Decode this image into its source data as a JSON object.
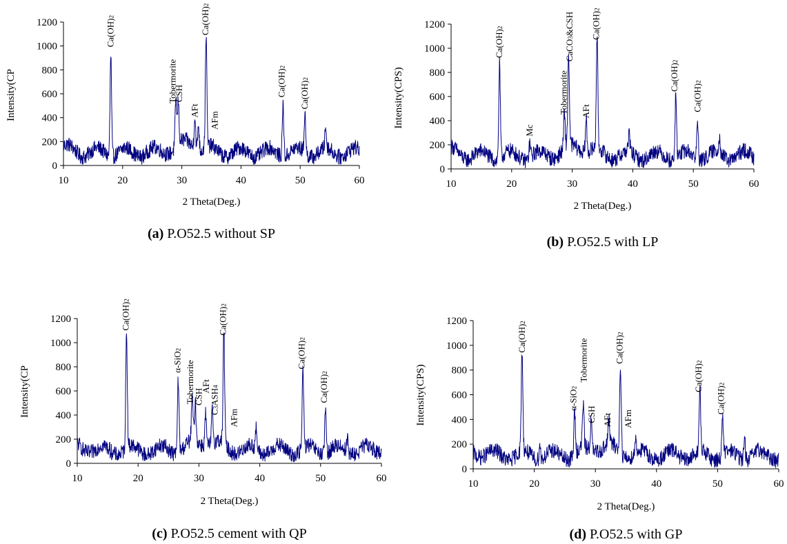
{
  "figure": {
    "panels": [
      {
        "caption_tag": "(a)",
        "caption_text": " P.O52.5 without SP",
        "xlabel": "2 Theta(Deg.)",
        "ylabel": "Intensity(CP",
        "xticks": [
          "10",
          "20",
          "30",
          "40",
          "50",
          "60"
        ],
        "yticks": [
          "0",
          "200",
          "400",
          "600",
          "800",
          "1000",
          "1200"
        ]
      },
      {
        "caption_tag": "(b)",
        "caption_text": " P.O52.5  with LP",
        "xlabel": "2 Theta(Deg.)",
        "ylabel": "Intensity(CPS)",
        "xticks": [
          "10",
          "20",
          "30",
          "40",
          "50",
          "60"
        ],
        "yticks": [
          "0",
          "200",
          "400",
          "600",
          "800",
          "1000",
          "1200"
        ]
      },
      {
        "caption_tag": "(c)",
        "caption_text": " P.O52.5 cement with QP",
        "xlabel": "2 Theta(Deg.)",
        "ylabel": "Intensity(CP",
        "xticks": [
          "10",
          "20",
          "30",
          "40",
          "50",
          "60"
        ],
        "yticks": [
          "0",
          "200",
          "400",
          "600",
          "800",
          "1000",
          "1200"
        ]
      },
      {
        "caption_tag": "(d)",
        "caption_text": " P.O52.5 with GP",
        "xlabel": "2 Theta(Deg.)",
        "ylabel": "Intensity(CPS)",
        "xticks": [
          "10",
          "20",
          "30",
          "40",
          "50",
          "60"
        ],
        "yticks": [
          "0",
          "200",
          "400",
          "600",
          "800",
          "1000",
          "1200"
        ]
      }
    ]
  },
  "chart_data": [
    {
      "type": "line",
      "xlim": [
        10,
        60
      ],
      "ylim": [
        0,
        1200
      ],
      "xlabel": "2 Theta(Deg.)",
      "ylabel": "Intensity(CP",
      "line_color": "#000080",
      "baseline": 110,
      "peaks": [
        {
          "x": 18.0,
          "y": 960
        },
        {
          "x": 29.0,
          "y": 510
        },
        {
          "x": 29.4,
          "y": 470
        },
        {
          "x": 32.2,
          "y": 390
        },
        {
          "x": 32.8,
          "y": 330
        },
        {
          "x": 34.1,
          "y": 1060
        },
        {
          "x": 47.1,
          "y": 550
        },
        {
          "x": 50.8,
          "y": 450
        },
        {
          "x": 54.3,
          "y": 280
        }
      ],
      "annotations": [
        {
          "label": "Ca(OH)2",
          "x": 18.0,
          "y": 990
        },
        {
          "label": "Tobermorite",
          "x": 28.5,
          "y": 520
        },
        {
          "label": "CSH",
          "x": 29.6,
          "y": 530
        },
        {
          "label": "AFt",
          "x": 32.2,
          "y": 400
        },
        {
          "label": "Ca(OH)2",
          "x": 34.0,
          "y": 1090
        },
        {
          "label": "AFm",
          "x": 35.6,
          "y": 300
        },
        {
          "label": "Ca(OH)2",
          "x": 46.9,
          "y": 570
        },
        {
          "label": "Ca(OH)2",
          "x": 50.8,
          "y": 470
        }
      ]
    },
    {
      "type": "line",
      "xlim": [
        10,
        60
      ],
      "ylim": [
        0,
        1200
      ],
      "xlabel": "2 Theta(Deg.)",
      "ylabel": "Intensity(CPS)",
      "line_color": "#000080",
      "baseline": 110,
      "peaks": [
        {
          "x": 18.0,
          "y": 890
        },
        {
          "x": 23.0,
          "y": 230
        },
        {
          "x": 28.7,
          "y": 390
        },
        {
          "x": 29.4,
          "y": 870
        },
        {
          "x": 32.3,
          "y": 380
        },
        {
          "x": 34.1,
          "y": 1050
        },
        {
          "x": 39.4,
          "y": 260
        },
        {
          "x": 47.1,
          "y": 620
        },
        {
          "x": 50.7,
          "y": 420
        },
        {
          "x": 54.3,
          "y": 250
        }
      ],
      "annotations": [
        {
          "label": "Ca(OH)2",
          "x": 18.0,
          "y": 920
        },
        {
          "label": "Mc",
          "x": 23.0,
          "y": 270
        },
        {
          "label": "Tobermorite",
          "x": 28.6,
          "y": 450
        },
        {
          "label": "CaCO3&CSH",
          "x": 29.6,
          "y": 890
        },
        {
          "label": "AFt",
          "x": 32.3,
          "y": 420
        },
        {
          "label": "Ca(OH)2",
          "x": 34.0,
          "y": 1070
        },
        {
          "label": "Ca(OH)2",
          "x": 46.9,
          "y": 640
        },
        {
          "label": "Ca(OH)2",
          "x": 50.7,
          "y": 470
        }
      ]
    },
    {
      "type": "line",
      "xlim": [
        10,
        60
      ],
      "ylim": [
        0,
        1200
      ],
      "xlabel": "2 Theta(Deg.)",
      "ylabel": "Intensity(CP",
      "line_color": "#000080",
      "baseline": 110,
      "peaks": [
        {
          "x": 18.1,
          "y": 1080
        },
        {
          "x": 26.6,
          "y": 730
        },
        {
          "x": 28.9,
          "y": 480
        },
        {
          "x": 29.4,
          "y": 440
        },
        {
          "x": 31.1,
          "y": 380
        },
        {
          "x": 32.2,
          "y": 390
        },
        {
          "x": 34.1,
          "y": 1040
        },
        {
          "x": 39.4,
          "y": 280
        },
        {
          "x": 47.1,
          "y": 760
        },
        {
          "x": 50.8,
          "y": 480
        },
        {
          "x": 54.4,
          "y": 230
        }
      ],
      "annotations": [
        {
          "label": "Ca(OH)2",
          "x": 18.0,
          "y": 1100
        },
        {
          "label": "α-SiO2",
          "x": 26.5,
          "y": 750
        },
        {
          "label": "Tobermorite",
          "x": 28.6,
          "y": 490
        },
        {
          "label": "CSH",
          "x": 30.0,
          "y": 480
        },
        {
          "label": "AFt",
          "x": 31.2,
          "y": 580
        },
        {
          "label": "C3ASH4",
          "x": 32.6,
          "y": 400
        },
        {
          "label": "Ca(OH)2",
          "x": 34.0,
          "y": 1060
        },
        {
          "label": "AFm",
          "x": 35.8,
          "y": 300
        },
        {
          "label": "Ca(OH)2",
          "x": 46.9,
          "y": 780
        },
        {
          "label": "Ca(OH)2",
          "x": 50.6,
          "y": 500
        }
      ]
    },
    {
      "type": "line",
      "xlim": [
        10,
        60
      ],
      "ylim": [
        0,
        1200
      ],
      "xlabel": "2 Theta(Deg.)",
      "ylabel": "Intensity(CPS)",
      "line_color": "#000080",
      "baseline": 110,
      "peaks": [
        {
          "x": 18.0,
          "y": 920
        },
        {
          "x": 20.9,
          "y": 230
        },
        {
          "x": 26.6,
          "y": 450
        },
        {
          "x": 28.0,
          "y": 470
        },
        {
          "x": 29.3,
          "y": 350
        },
        {
          "x": 32.2,
          "y": 330
        },
        {
          "x": 34.1,
          "y": 830
        },
        {
          "x": 36.6,
          "y": 230
        },
        {
          "x": 47.1,
          "y": 600
        },
        {
          "x": 50.8,
          "y": 420
        },
        {
          "x": 54.4,
          "y": 280
        }
      ],
      "annotations": [
        {
          "label": "Ca(OH)2",
          "x": 18.0,
          "y": 940
        },
        {
          "label": "α-SiO2",
          "x": 26.4,
          "y": 470
        },
        {
          "label": "Tobermorite",
          "x": 28.1,
          "y": 700
        },
        {
          "label": "CSH",
          "x": 29.4,
          "y": 370
        },
        {
          "label": "AFt",
          "x": 32.0,
          "y": 340
        },
        {
          "label": "Ca(OH)2",
          "x": 34.0,
          "y": 850
        },
        {
          "label": "AFm",
          "x": 35.4,
          "y": 330
        },
        {
          "label": "Ca(OH)2",
          "x": 46.9,
          "y": 620
        },
        {
          "label": "Ca(OH)2",
          "x": 50.6,
          "y": 440
        }
      ]
    }
  ]
}
